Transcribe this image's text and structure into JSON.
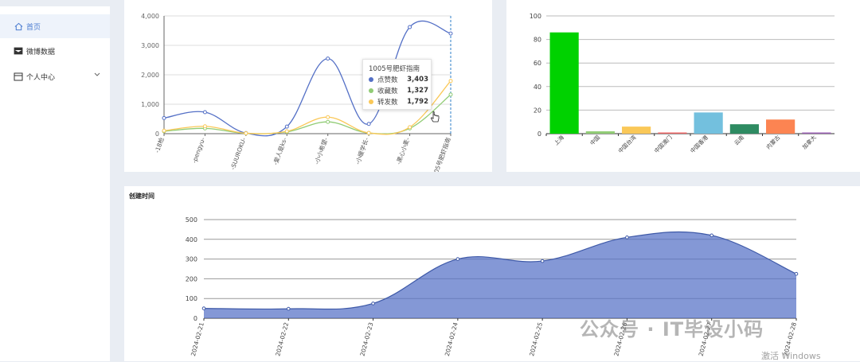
{
  "sidebar": {
    "items": [
      {
        "label": "首页",
        "icon": "home-icon"
      },
      {
        "label": "微博数据",
        "icon": "weibo-data-icon"
      },
      {
        "label": "个人中心",
        "icon": "profile-icon"
      }
    ]
  },
  "chart_data": [
    {
      "type": "line",
      "categories": [
        "-18枪",
        "-pengyu-",
        "-SUUROKU-",
        "-爱人是ks-",
        "-小小希望-",
        "-小暖学长-",
        "-黑心小麦-",
        "1005号肥虾指南"
      ],
      "series": [
        {
          "name": "点赞数",
          "color": "#5470c6",
          "values": [
            530,
            730,
            20,
            240,
            2550,
            330,
            3620,
            3403
          ]
        },
        {
          "name": "收藏数",
          "color": "#91cc75",
          "values": [
            80,
            180,
            10,
            60,
            400,
            20,
            180,
            1327
          ]
        },
        {
          "name": "转发数",
          "color": "#fac858",
          "values": [
            100,
            250,
            15,
            80,
            560,
            25,
            220,
            1792
          ]
        }
      ],
      "ylim": [
        0,
        4000
      ],
      "yticks": [
        "0",
        "1,000",
        "2,000",
        "3,000",
        "4,000"
      ],
      "tooltip": {
        "title": "1005号肥虾指南",
        "rows": [
          {
            "name": "点赞数",
            "value": "3,403",
            "color": "#5470c6"
          },
          {
            "name": "收藏数",
            "value": "1,327",
            "color": "#91cc75"
          },
          {
            "name": "转发数",
            "value": "1,792",
            "color": "#fac858"
          }
        ]
      }
    },
    {
      "type": "bar",
      "categories": [
        "上海",
        "中国",
        "中国台湾",
        "中国澳门",
        "中国香港",
        "云南",
        "内蒙古",
        "加拿大"
      ],
      "values": [
        86,
        2,
        6,
        1,
        18,
        8,
        12,
        1
      ],
      "colors": [
        "#00d200",
        "#91cc75",
        "#fac858",
        "#ee6666",
        "#73c0de",
        "#2e8b62",
        "#fc8452",
        "#9a60b4"
      ],
      "ylim": [
        0,
        100
      ],
      "yticks": [
        "0",
        "20",
        "40",
        "60",
        "80",
        "100"
      ]
    },
    {
      "type": "area",
      "title": "创建时间",
      "categories": [
        "2024-02-21",
        "2024-02-22",
        "2024-02-23",
        "2024-02-24",
        "2024-02-25",
        "2024-02-26",
        "2024-02-27",
        "2024-02-28"
      ],
      "values": [
        50,
        48,
        75,
        300,
        290,
        410,
        420,
        225
      ],
      "color": "#5470c6",
      "ylim": [
        0,
        500
      ],
      "yticks": [
        "0",
        "100",
        "200",
        "300",
        "400",
        "500"
      ]
    }
  ],
  "watermark": "公众号 · IT毕设小码",
  "activation_text": "激活 Windows"
}
